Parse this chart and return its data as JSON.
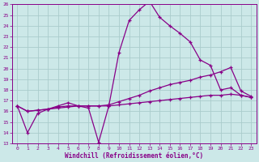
{
  "xlabel": "Windchill (Refroidissement éolien,°C)",
  "bg_color": "#cce8e8",
  "line_color": "#880088",
  "grid_color": "#aacccc",
  "xlim": [
    -0.5,
    23.5
  ],
  "ylim": [
    13,
    26
  ],
  "xticks": [
    0,
    1,
    2,
    3,
    4,
    5,
    6,
    7,
    8,
    9,
    10,
    11,
    12,
    13,
    14,
    15,
    16,
    17,
    18,
    19,
    20,
    21,
    22,
    23
  ],
  "yticks": [
    13,
    14,
    15,
    16,
    17,
    18,
    19,
    20,
    21,
    22,
    23,
    24,
    25,
    26
  ],
  "series1": [
    16.5,
    14.0,
    15.8,
    16.2,
    16.5,
    16.8,
    16.5,
    16.3,
    13.1,
    16.5,
    21.5,
    24.5,
    25.5,
    26.3,
    24.8,
    24.0,
    23.3,
    22.5,
    20.8,
    20.3,
    18.0,
    18.2,
    17.5,
    17.3
  ],
  "series2": [
    16.5,
    16.0,
    16.1,
    16.2,
    16.4,
    16.5,
    16.5,
    16.5,
    16.5,
    16.6,
    16.9,
    17.2,
    17.5,
    17.9,
    18.2,
    18.5,
    18.7,
    18.9,
    19.2,
    19.4,
    19.7,
    20.1,
    17.9,
    17.4
  ],
  "series3": [
    16.5,
    16.0,
    16.1,
    16.2,
    16.3,
    16.4,
    16.5,
    16.5,
    16.5,
    16.5,
    16.6,
    16.7,
    16.8,
    16.9,
    17.0,
    17.1,
    17.2,
    17.3,
    17.4,
    17.5,
    17.5,
    17.6,
    17.5,
    17.3
  ]
}
